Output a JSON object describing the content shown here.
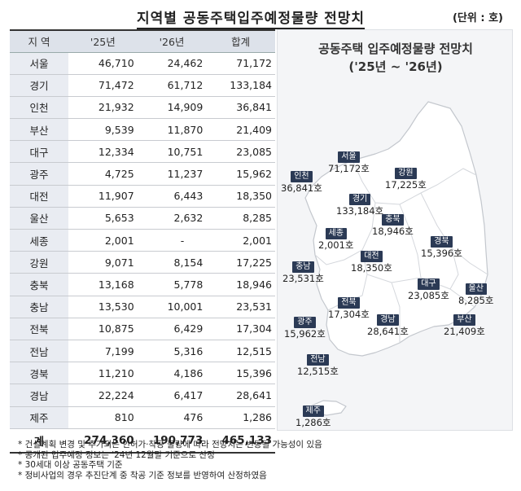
{
  "header": {
    "title": "지역별 공동주택입주예정물량 전망치",
    "unit": "(단위 : 호)"
  },
  "table": {
    "columns": [
      "지 역",
      "'25년",
      "'26년",
      "합계"
    ],
    "rows": [
      {
        "region": "서울",
        "y25": "46,710",
        "y26": "24,462",
        "total": "71,172"
      },
      {
        "region": "경기",
        "y25": "71,472",
        "y26": "61,712",
        "total": "133,184"
      },
      {
        "region": "인천",
        "y25": "21,932",
        "y26": "14,909",
        "total": "36,841"
      },
      {
        "region": "부산",
        "y25": "9,539",
        "y26": "11,870",
        "total": "21,409"
      },
      {
        "region": "대구",
        "y25": "12,334",
        "y26": "10,751",
        "total": "23,085"
      },
      {
        "region": "광주",
        "y25": "4,725",
        "y26": "11,237",
        "total": "15,962"
      },
      {
        "region": "대전",
        "y25": "11,907",
        "y26": "6,443",
        "total": "18,350"
      },
      {
        "region": "울산",
        "y25": "5,653",
        "y26": "2,632",
        "total": "8,285"
      },
      {
        "region": "세종",
        "y25": "2,001",
        "y26": "-",
        "total": "2,001"
      },
      {
        "region": "강원",
        "y25": "9,071",
        "y26": "8,154",
        "total": "17,225"
      },
      {
        "region": "충북",
        "y25": "13,168",
        "y26": "5,778",
        "total": "18,946"
      },
      {
        "region": "충남",
        "y25": "13,530",
        "y26": "10,001",
        "total": "23,531"
      },
      {
        "region": "전북",
        "y25": "10,875",
        "y26": "6,429",
        "total": "17,304"
      },
      {
        "region": "전남",
        "y25": "7,199",
        "y26": "5,316",
        "total": "12,515"
      },
      {
        "region": "경북",
        "y25": "11,210",
        "y26": "4,186",
        "total": "15,396"
      },
      {
        "region": "경남",
        "y25": "22,224",
        "y26": "6,417",
        "total": "28,641"
      },
      {
        "region": "제주",
        "y25": "810",
        "y26": "476",
        "total": "1,286"
      }
    ],
    "total_row": {
      "region": "계",
      "y25": "274,360",
      "y26": "190,773",
      "total": "465,133"
    }
  },
  "map": {
    "title_line1": "공동주택 입주예정물량 전망치",
    "title_line2": "('25년 ~ '26년)",
    "labels": [
      {
        "name": "서울",
        "value": "71,172호"
      },
      {
        "name": "인천",
        "value": "36,841호"
      },
      {
        "name": "강원",
        "value": "17,225호"
      },
      {
        "name": "경기",
        "value": "133,184호"
      },
      {
        "name": "충북",
        "value": "18,946호"
      },
      {
        "name": "세종",
        "value": "2,001호"
      },
      {
        "name": "경북",
        "value": "15,396호"
      },
      {
        "name": "대전",
        "value": "18,350호"
      },
      {
        "name": "충남",
        "value": "23,531호"
      },
      {
        "name": "대구",
        "value": "23,085호"
      },
      {
        "name": "울산",
        "value": "8,285호"
      },
      {
        "name": "전북",
        "value": "17,304호"
      },
      {
        "name": "부산",
        "value": "21,409호"
      },
      {
        "name": "경남",
        "value": "28,641호"
      },
      {
        "name": "광주",
        "value": "15,962호"
      },
      {
        "name": "전남",
        "value": "12,515호"
      },
      {
        "name": "제주",
        "value": "1,286호"
      }
    ],
    "colors": {
      "land": "#ffffff",
      "border": "#c3c7cd",
      "tag": "#2b3a55",
      "panel": "#f4f5f7"
    }
  },
  "notes": [
    "* 건설계획 변경 및 추가되는 인허가·착공 물량에 따라 전망치는 변동될 가능성이 있음",
    "* 공개된 입주예정 정보는 '24년 12월말 기준으로 산정",
    "* 30세대 이상 공동주택 기준",
    "* 정비사업의 경우 추진단계 중 착공 기준 정보를 반영하여 산정하였음"
  ]
}
